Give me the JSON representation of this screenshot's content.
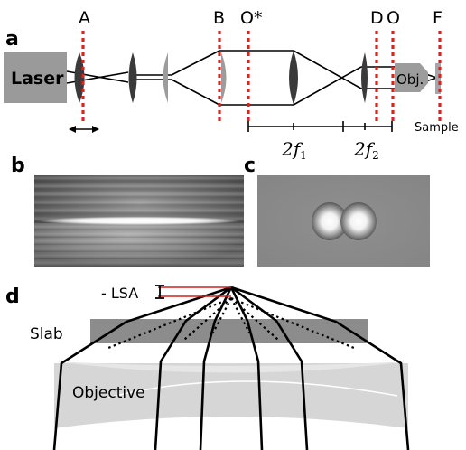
{
  "panels": {
    "a": "a",
    "b": "b",
    "c": "c",
    "d": "d"
  },
  "panel_a": {
    "laser_label": "Laser",
    "objective_label": "Obj.",
    "sample_label": "Sample",
    "planes": [
      "A",
      "B",
      "O*",
      "D",
      "O",
      "F"
    ],
    "focal_2f": "2f",
    "focal_sub_1": "1",
    "focal_sub_2": "2"
  },
  "panel_d": {
    "lsa_label": "- LSA",
    "slab_label": "Slab",
    "objective_label": "Objective"
  },
  "colors": {
    "plane_marker": "#e02020",
    "laser_box": "#9a9a9a",
    "lens_dark": "#3a3a3a",
    "lens_gray": "#9c9c9c",
    "slab": "#8c8c8c",
    "objective_body": "#d6d6d6",
    "lsa_lines": "#d02020"
  }
}
